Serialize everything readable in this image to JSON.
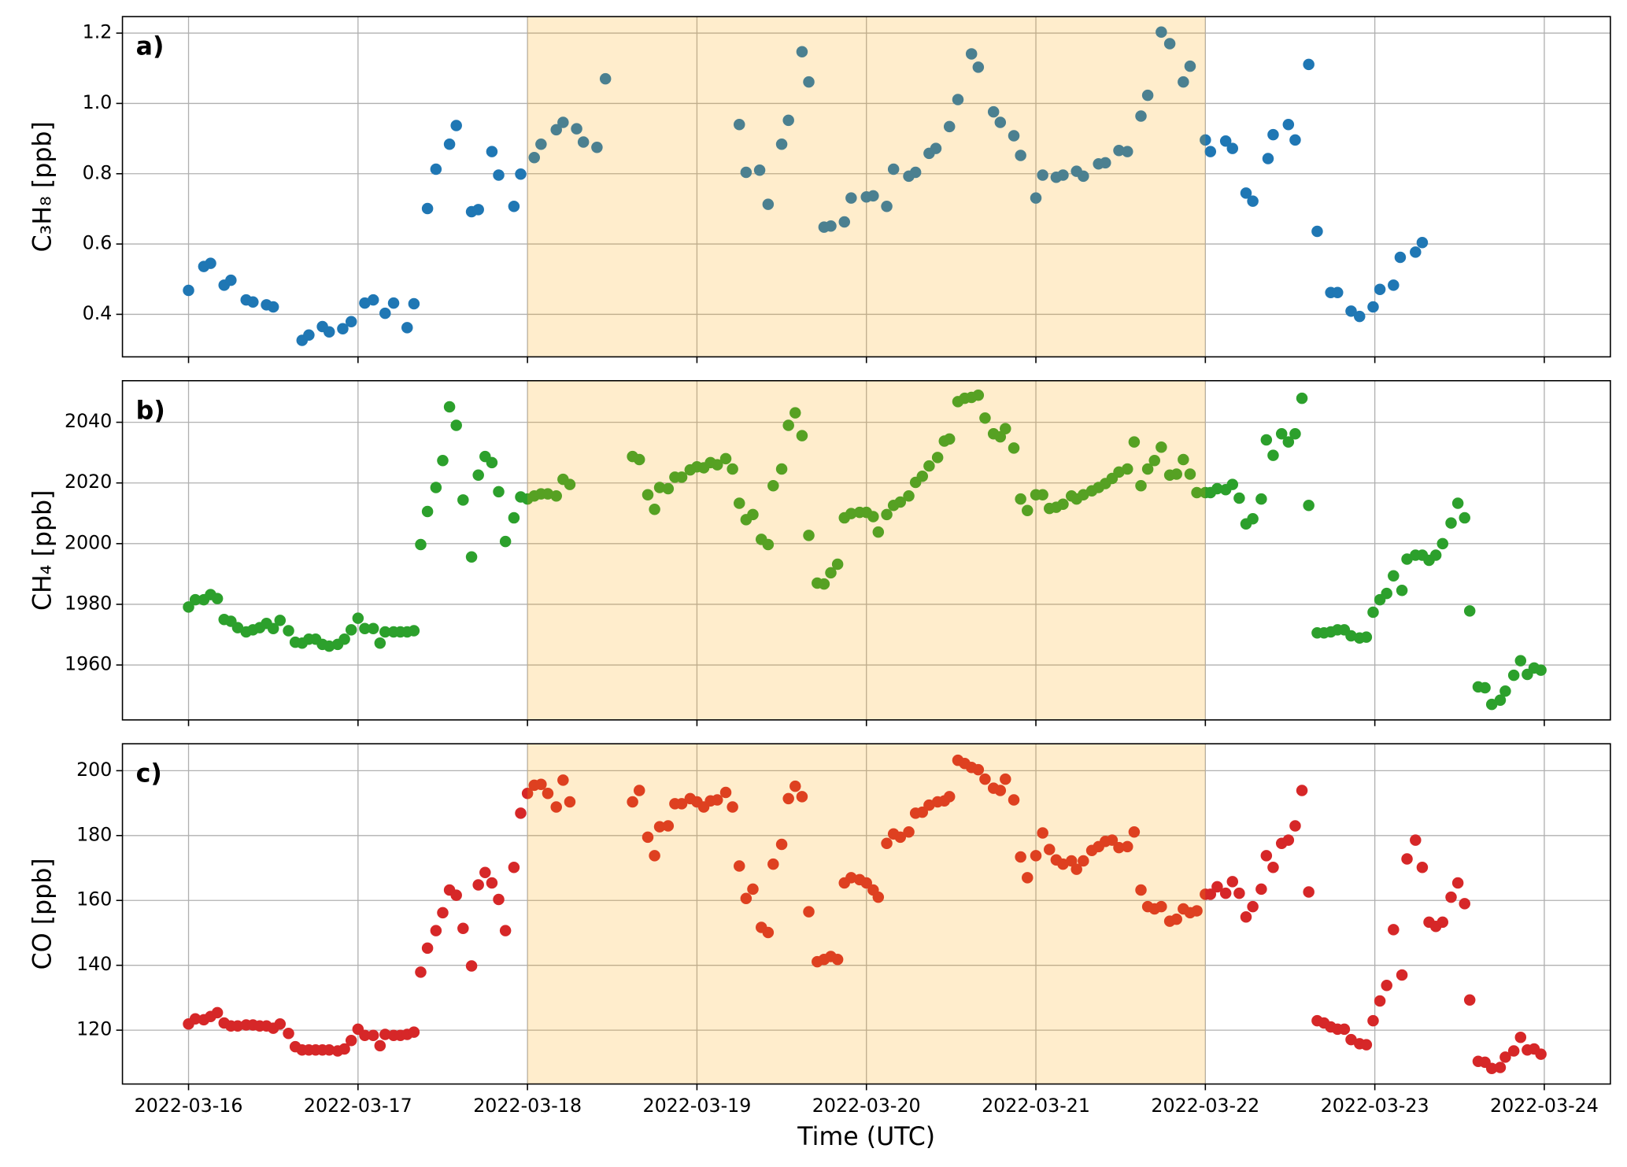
{
  "chart_data": {
    "type": "scatter",
    "xlabel": "Time (UTC)",
    "xlim": [
      -0.39,
      8.39
    ],
    "xticks": [
      {
        "value": 0,
        "label": "2022-03-16"
      },
      {
        "value": 1,
        "label": "2022-03-17"
      },
      {
        "value": 2,
        "label": "2022-03-18"
      },
      {
        "value": 3,
        "label": "2022-03-19"
      },
      {
        "value": 4,
        "label": "2022-03-20"
      },
      {
        "value": 5,
        "label": "2022-03-21"
      },
      {
        "value": 6,
        "label": "2022-03-22"
      },
      {
        "value": 7,
        "label": "2022-03-23"
      },
      {
        "value": 8,
        "label": "2022-03-24"
      }
    ],
    "grid": true,
    "shaded_span": {
      "range": [
        2,
        6
      ],
      "color": "#ffa500",
      "alpha": 0.2
    },
    "panels": [
      {
        "label": "a)",
        "ylabel": "C₃H₈ [ppb]",
        "color": "#1f77b4",
        "ylim": [
          0.279,
          1.247
        ],
        "yticks": [
          0.4,
          0.6,
          0.8,
          {
            "value": 1,
            "label": "1.0"
          },
          1.2
        ],
        "x": [
          0,
          0.09,
          0.13,
          0.21,
          0.25,
          0.34,
          0.38,
          0.46,
          0.5,
          0.67,
          0.71,
          0.79,
          0.83,
          0.91,
          0.96,
          1.04,
          1.09,
          1.16,
          1.21,
          1.29,
          1.33,
          1.41,
          1.46,
          1.54,
          1.58,
          1.67,
          1.71,
          1.79,
          1.83,
          1.92,
          1.96,
          2.04,
          2.08,
          2.17,
          2.21,
          2.29,
          2.33,
          2.41,
          2.46,
          3.25,
          3.29,
          3.37,
          3.42,
          3.5,
          3.54,
          3.62,
          3.66,
          3.75,
          3.79,
          3.87,
          3.91,
          4,
          4.04,
          4.12,
          4.16,
          4.25,
          4.29,
          4.37,
          4.41,
          4.49,
          4.54,
          4.62,
          4.66,
          4.75,
          4.79,
          4.87,
          4.91,
          5,
          5.04,
          5.12,
          5.16,
          5.24,
          5.28,
          5.37,
          5.41,
          5.49,
          5.54,
          5.62,
          5.66,
          5.74,
          5.79,
          5.87,
          5.91,
          6,
          6.03,
          6.12,
          6.16,
          6.24,
          6.28,
          6.37,
          6.4,
          6.49,
          6.53,
          6.61,
          6.66,
          6.74,
          6.78,
          6.86,
          6.91,
          6.99,
          7.03,
          7.11,
          7.15,
          7.24,
          7.28
        ],
        "values": [
          0.468,
          0.536,
          0.545,
          0.483,
          0.497,
          0.441,
          0.435,
          0.427,
          0.421,
          0.326,
          0.341,
          0.365,
          0.35,
          0.359,
          0.379,
          0.432,
          0.441,
          0.403,
          0.432,
          0.362,
          0.43,
          0.701,
          0.813,
          0.884,
          0.937,
          0.692,
          0.698,
          0.863,
          0.796,
          0.707,
          0.799,
          0.846,
          0.884,
          0.925,
          0.946,
          0.928,
          0.89,
          0.875,
          1.07,
          0.94,
          0.804,
          0.81,
          0.713,
          0.884,
          0.952,
          1.147,
          1.061,
          0.648,
          0.651,
          0.663,
          0.731,
          0.734,
          0.737,
          0.707,
          0.813,
          0.793,
          0.804,
          0.858,
          0.872,
          0.934,
          1.011,
          1.141,
          1.103,
          0.976,
          0.946,
          0.908,
          0.852,
          0.731,
          0.796,
          0.79,
          0.796,
          0.807,
          0.793,
          0.828,
          0.831,
          0.866,
          0.863,
          0.964,
          1.023,
          1.203,
          1.17,
          1.061,
          1.106,
          0.896,
          0.863,
          0.893,
          0.872,
          0.745,
          0.722,
          0.843,
          0.911,
          0.94,
          0.896,
          1.111,
          0.636,
          0.462,
          0.462,
          0.409,
          0.394,
          0.421,
          0.471,
          0.483,
          0.562,
          0.577,
          0.604
        ]
      },
      {
        "label": "b)",
        "ylabel": "CH₄ [ppb]",
        "color": "#2ca02c",
        "ylim": [
          1941.9,
          2053.7
        ],
        "yticks": [
          1960,
          1980,
          2000,
          2020,
          2040
        ],
        "x": [
          0,
          0.04,
          0.09,
          0.13,
          0.17,
          0.21,
          0.25,
          0.29,
          0.34,
          0.38,
          0.42,
          0.46,
          0.5,
          0.54,
          0.59,
          0.63,
          0.67,
          0.71,
          0.75,
          0.79,
          0.83,
          0.88,
          0.92,
          0.96,
          1,
          1.04,
          1.09,
          1.13,
          1.16,
          1.21,
          1.25,
          1.29,
          1.33,
          1.37,
          1.41,
          1.46,
          1.5,
          1.54,
          1.58,
          1.62,
          1.67,
          1.71,
          1.75,
          1.79,
          1.83,
          1.87,
          1.92,
          1.96,
          2,
          2.04,
          2.08,
          2.12,
          2.17,
          2.21,
          2.25,
          2.62,
          2.66,
          2.71,
          2.75,
          2.78,
          2.83,
          2.87,
          2.91,
          2.96,
          3,
          3.04,
          3.08,
          3.12,
          3.17,
          3.21,
          3.25,
          3.29,
          3.33,
          3.38,
          3.42,
          3.45,
          3.5,
          3.54,
          3.58,
          3.62,
          3.66,
          3.71,
          3.75,
          3.79,
          3.83,
          3.87,
          3.91,
          3.96,
          4,
          4.04,
          4.07,
          4.12,
          4.16,
          4.2,
          4.25,
          4.29,
          4.33,
          4.37,
          4.42,
          4.46,
          4.49,
          4.54,
          4.58,
          4.62,
          4.66,
          4.7,
          4.75,
          4.79,
          4.82,
          4.87,
          4.91,
          4.95,
          5,
          5.04,
          5.08,
          5.12,
          5.16,
          5.21,
          5.24,
          5.28,
          5.33,
          5.37,
          5.41,
          5.45,
          5.49,
          5.54,
          5.58,
          5.62,
          5.66,
          5.7,
          5.74,
          5.79,
          5.83,
          5.87,
          5.91,
          5.95,
          6,
          6.03,
          6.07,
          6.12,
          6.16,
          6.2,
          6.24,
          6.28,
          6.33,
          6.36,
          6.4,
          6.45,
          6.49,
          6.53,
          6.57,
          6.61,
          6.66,
          6.7,
          6.74,
          6.78,
          6.82,
          6.86,
          6.91,
          6.95,
          6.99,
          7.03,
          7.07,
          7.11,
          7.16,
          7.19,
          7.24,
          7.28,
          7.32,
          7.36,
          7.4,
          7.45,
          7.49,
          7.53,
          7.56,
          7.61,
          7.65,
          7.69,
          7.74,
          7.77,
          7.82,
          7.86,
          7.9,
          7.94,
          7.98
        ],
        "values": [
          1979.1,
          1981.5,
          1981.5,
          1983.2,
          1981.9,
          1975,
          1974.4,
          1972.3,
          1970.9,
          1971.6,
          1972.3,
          1973.7,
          1972,
          1974.7,
          1971.3,
          1967.5,
          1967.2,
          1968.5,
          1968.5,
          1966.8,
          1966.2,
          1966.8,
          1968.5,
          1971.6,
          1975.4,
          1972,
          1972,
          1967.2,
          1970.9,
          1970.9,
          1970.9,
          1970.9,
          1971.3,
          1999.7,
          2010.6,
          2018.5,
          2027.4,
          2045.1,
          2039,
          2014.4,
          1995.6,
          2022.6,
          2028.7,
          2026.7,
          2017.1,
          2000.7,
          2008.5,
          2015.4,
          2014.7,
          2015.7,
          2016.4,
          2016.4,
          2015.7,
          2021.2,
          2019.5,
          2028.7,
          2027.7,
          2016.1,
          2011.3,
          2018.5,
          2018.1,
          2021.9,
          2021.9,
          2024.3,
          2025.3,
          2025,
          2026.7,
          2026,
          2028,
          2024.6,
          2013.3,
          2007.9,
          2009.6,
          2001.4,
          1999.7,
          2019.1,
          2024.6,
          2039,
          2043.1,
          2035.6,
          2002.7,
          1987,
          1986.7,
          1990.4,
          1993.2,
          2008.5,
          2009.9,
          2010.3,
          2010.3,
          2008.9,
          2003.8,
          2009.6,
          2012.6,
          2013.7,
          2015.7,
          2020.2,
          2022.2,
          2025.6,
          2028.4,
          2033.8,
          2034.5,
          2046.8,
          2047.9,
          2048.2,
          2048.9,
          2041.4,
          2036.2,
          2035.2,
          2037.9,
          2031.5,
          2014.7,
          2010.9,
          2016.1,
          2016.1,
          2011.6,
          2012,
          2013,
          2015.7,
          2014.7,
          2016.1,
          2017.4,
          2018.5,
          2019.8,
          2021.5,
          2023.6,
          2024.6,
          2033.5,
          2019.1,
          2024.6,
          2027.4,
          2031.8,
          2022.6,
          2022.9,
          2027.7,
          2022.9,
          2016.8,
          2016.8,
          2016.8,
          2018.1,
          2017.8,
          2019.5,
          2015,
          2006.5,
          2008.2,
          2014.7,
          2034.2,
          2029.1,
          2036.2,
          2033.5,
          2036.2,
          2047.9,
          2012.6,
          1970.6,
          1970.6,
          1970.9,
          1971.6,
          1971.6,
          1969.6,
          1968.9,
          1969.2,
          1977.4,
          1981.5,
          1983.6,
          1989.4,
          1984.6,
          1994.9,
          1996.2,
          1996.2,
          1994.5,
          1996.2,
          2000,
          2006.8,
          2013.3,
          2008.5,
          1977.8,
          1952.8,
          1952.5,
          1947,
          1948.4,
          1951.4,
          1956.6,
          1961.4,
          1956.9,
          1959,
          1958.3
        ]
      },
      {
        "label": "c)",
        "ylabel": "CO [ppb]",
        "color": "#d62728",
        "ylim": [
          103.4,
          208.3
        ],
        "yticks": [
          120,
          140,
          160,
          180,
          200
        ],
        "x": [
          0,
          0.04,
          0.09,
          0.13,
          0.17,
          0.21,
          0.25,
          0.29,
          0.34,
          0.38,
          0.42,
          0.46,
          0.5,
          0.54,
          0.59,
          0.63,
          0.67,
          0.71,
          0.75,
          0.79,
          0.83,
          0.88,
          0.92,
          0.96,
          1,
          1.04,
          1.09,
          1.13,
          1.16,
          1.21,
          1.25,
          1.29,
          1.33,
          1.37,
          1.41,
          1.46,
          1.5,
          1.54,
          1.58,
          1.62,
          1.67,
          1.71,
          1.75,
          1.79,
          1.83,
          1.87,
          1.92,
          1.96,
          2,
          2.04,
          2.08,
          2.12,
          2.17,
          2.21,
          2.25,
          2.62,
          2.66,
          2.71,
          2.75,
          2.78,
          2.83,
          2.87,
          2.91,
          2.96,
          3,
          3.04,
          3.08,
          3.12,
          3.17,
          3.21,
          3.25,
          3.29,
          3.33,
          3.38,
          3.42,
          3.45,
          3.5,
          3.54,
          3.58,
          3.62,
          3.66,
          3.71,
          3.75,
          3.79,
          3.83,
          3.87,
          3.91,
          3.96,
          4,
          4.04,
          4.07,
          4.12,
          4.16,
          4.2,
          4.25,
          4.29,
          4.33,
          4.37,
          4.42,
          4.46,
          4.49,
          4.54,
          4.58,
          4.62,
          4.66,
          4.7,
          4.75,
          4.79,
          4.82,
          4.87,
          4.91,
          4.95,
          5,
          5.04,
          5.08,
          5.12,
          5.16,
          5.21,
          5.24,
          5.28,
          5.33,
          5.37,
          5.41,
          5.45,
          5.49,
          5.54,
          5.58,
          5.62,
          5.66,
          5.7,
          5.74,
          5.79,
          5.83,
          5.87,
          5.91,
          5.95,
          6,
          6.03,
          6.07,
          6.12,
          6.16,
          6.2,
          6.24,
          6.28,
          6.33,
          6.36,
          6.4,
          6.45,
          6.49,
          6.53,
          6.57,
          6.61,
          6.66,
          6.7,
          6.74,
          6.78,
          6.82,
          6.86,
          6.91,
          6.95,
          6.99,
          7.03,
          7.07,
          7.11,
          7.16,
          7.19,
          7.24,
          7.28,
          7.32,
          7.36,
          7.4,
          7.45,
          7.49,
          7.53,
          7.56,
          7.61,
          7.65,
          7.69,
          7.74,
          7.77,
          7.82,
          7.86,
          7.9,
          7.94,
          7.98
        ],
        "values": [
          121.9,
          123.5,
          123.2,
          124.2,
          125.4,
          122.2,
          121.3,
          121.3,
          121.6,
          121.6,
          121.3,
          121.3,
          120.6,
          121.9,
          119,
          114.9,
          113.9,
          113.9,
          113.9,
          113.9,
          113.9,
          113.6,
          114.2,
          116.8,
          120.3,
          118.4,
          118.4,
          115.2,
          118.7,
          118.4,
          118.4,
          118.7,
          119.4,
          137.9,
          145.3,
          150.7,
          156.2,
          163.2,
          161.6,
          151.4,
          139.8,
          164.8,
          168.6,
          165.4,
          160.3,
          150.7,
          170.2,
          186.9,
          193,
          195.5,
          195.8,
          193,
          188.8,
          197.1,
          190.4,
          190.4,
          193.9,
          179.5,
          173.8,
          182.7,
          183,
          189.8,
          189.8,
          191.4,
          190.4,
          188.8,
          190.7,
          191,
          193.3,
          188.8,
          170.6,
          160.6,
          163.5,
          151.7,
          150.1,
          171.2,
          177.3,
          191.4,
          195.2,
          192,
          156.5,
          141.1,
          141.8,
          142.7,
          141.8,
          165.4,
          167,
          166.4,
          165.4,
          163.2,
          161,
          177.6,
          180.5,
          179.5,
          181.1,
          186.9,
          187.2,
          189.4,
          190.4,
          190.7,
          192,
          203.2,
          202.2,
          201,
          200.3,
          197.4,
          194.6,
          193.9,
          197.4,
          191,
          173.4,
          167,
          173.8,
          180.8,
          175.7,
          172.5,
          171.2,
          172.2,
          169.6,
          172.2,
          175.4,
          176.6,
          178.2,
          178.6,
          176.3,
          176.6,
          181.1,
          163.2,
          158.1,
          157.4,
          158.1,
          153.6,
          154.2,
          157.4,
          156.2,
          156.8,
          161.9,
          161.9,
          164.2,
          162.2,
          165.8,
          162.2,
          154.9,
          158.1,
          163.5,
          173.8,
          170.2,
          177.6,
          178.6,
          183,
          193.9,
          162.6,
          122.9,
          122.2,
          121,
          120.3,
          120.3,
          117.1,
          115.8,
          115.5,
          122.9,
          129,
          133.8,
          151,
          137,
          172.8,
          178.6,
          170.2,
          153.3,
          152,
          153.3,
          161,
          165.4,
          159,
          129.3,
          110.4,
          110.1,
          108.2,
          108.5,
          111.7,
          113.6,
          117.8,
          113.9,
          114.2,
          112.6
        ]
      }
    ]
  }
}
